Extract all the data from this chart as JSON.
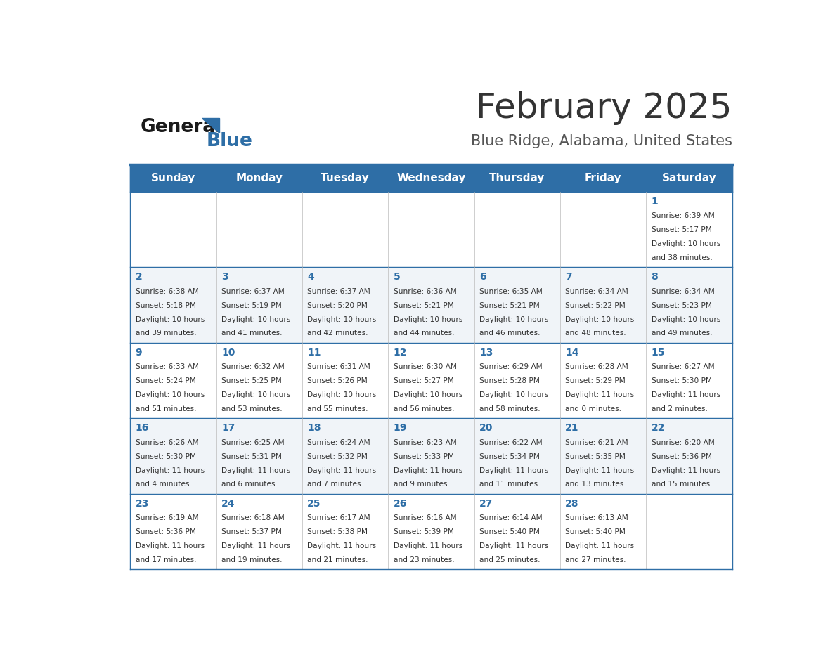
{
  "title": "February 2025",
  "subtitle": "Blue Ridge, Alabama, United States",
  "header_bg": "#2E6EA6",
  "header_text": "#FFFFFF",
  "day_names": [
    "Sunday",
    "Monday",
    "Tuesday",
    "Wednesday",
    "Thursday",
    "Friday",
    "Saturday"
  ],
  "title_color": "#333333",
  "subtitle_color": "#555555",
  "cell_bg_normal": "#FFFFFF",
  "cell_bg_alt": "#F0F4F8",
  "line_color": "#2E6EA6",
  "day_num_color": "#2E6EA6",
  "cell_text_color": "#333333",
  "logo_general_color": "#1a1a1a",
  "logo_blue_color": "#2E6EA6",
  "calendar": [
    [
      {
        "day": null
      },
      {
        "day": null
      },
      {
        "day": null
      },
      {
        "day": null
      },
      {
        "day": null
      },
      {
        "day": null
      },
      {
        "day": 1,
        "sunrise": "6:39 AM",
        "sunset": "5:17 PM",
        "daylight": "10 hours and 38 minutes."
      }
    ],
    [
      {
        "day": 2,
        "sunrise": "6:38 AM",
        "sunset": "5:18 PM",
        "daylight": "10 hours and 39 minutes."
      },
      {
        "day": 3,
        "sunrise": "6:37 AM",
        "sunset": "5:19 PM",
        "daylight": "10 hours and 41 minutes."
      },
      {
        "day": 4,
        "sunrise": "6:37 AM",
        "sunset": "5:20 PM",
        "daylight": "10 hours and 42 minutes."
      },
      {
        "day": 5,
        "sunrise": "6:36 AM",
        "sunset": "5:21 PM",
        "daylight": "10 hours and 44 minutes."
      },
      {
        "day": 6,
        "sunrise": "6:35 AM",
        "sunset": "5:21 PM",
        "daylight": "10 hours and 46 minutes."
      },
      {
        "day": 7,
        "sunrise": "6:34 AM",
        "sunset": "5:22 PM",
        "daylight": "10 hours and 48 minutes."
      },
      {
        "day": 8,
        "sunrise": "6:34 AM",
        "sunset": "5:23 PM",
        "daylight": "10 hours and 49 minutes."
      }
    ],
    [
      {
        "day": 9,
        "sunrise": "6:33 AM",
        "sunset": "5:24 PM",
        "daylight": "10 hours and 51 minutes."
      },
      {
        "day": 10,
        "sunrise": "6:32 AM",
        "sunset": "5:25 PM",
        "daylight": "10 hours and 53 minutes."
      },
      {
        "day": 11,
        "sunrise": "6:31 AM",
        "sunset": "5:26 PM",
        "daylight": "10 hours and 55 minutes."
      },
      {
        "day": 12,
        "sunrise": "6:30 AM",
        "sunset": "5:27 PM",
        "daylight": "10 hours and 56 minutes."
      },
      {
        "day": 13,
        "sunrise": "6:29 AM",
        "sunset": "5:28 PM",
        "daylight": "10 hours and 58 minutes."
      },
      {
        "day": 14,
        "sunrise": "6:28 AM",
        "sunset": "5:29 PM",
        "daylight": "11 hours and 0 minutes."
      },
      {
        "day": 15,
        "sunrise": "6:27 AM",
        "sunset": "5:30 PM",
        "daylight": "11 hours and 2 minutes."
      }
    ],
    [
      {
        "day": 16,
        "sunrise": "6:26 AM",
        "sunset": "5:30 PM",
        "daylight": "11 hours and 4 minutes."
      },
      {
        "day": 17,
        "sunrise": "6:25 AM",
        "sunset": "5:31 PM",
        "daylight": "11 hours and 6 minutes."
      },
      {
        "day": 18,
        "sunrise": "6:24 AM",
        "sunset": "5:32 PM",
        "daylight": "11 hours and 7 minutes."
      },
      {
        "day": 19,
        "sunrise": "6:23 AM",
        "sunset": "5:33 PM",
        "daylight": "11 hours and 9 minutes."
      },
      {
        "day": 20,
        "sunrise": "6:22 AM",
        "sunset": "5:34 PM",
        "daylight": "11 hours and 11 minutes."
      },
      {
        "day": 21,
        "sunrise": "6:21 AM",
        "sunset": "5:35 PM",
        "daylight": "11 hours and 13 minutes."
      },
      {
        "day": 22,
        "sunrise": "6:20 AM",
        "sunset": "5:36 PM",
        "daylight": "11 hours and 15 minutes."
      }
    ],
    [
      {
        "day": 23,
        "sunrise": "6:19 AM",
        "sunset": "5:36 PM",
        "daylight": "11 hours and 17 minutes."
      },
      {
        "day": 24,
        "sunrise": "6:18 AM",
        "sunset": "5:37 PM",
        "daylight": "11 hours and 19 minutes."
      },
      {
        "day": 25,
        "sunrise": "6:17 AM",
        "sunset": "5:38 PM",
        "daylight": "11 hours and 21 minutes."
      },
      {
        "day": 26,
        "sunrise": "6:16 AM",
        "sunset": "5:39 PM",
        "daylight": "11 hours and 23 minutes."
      },
      {
        "day": 27,
        "sunrise": "6:14 AM",
        "sunset": "5:40 PM",
        "daylight": "11 hours and 25 minutes."
      },
      {
        "day": 28,
        "sunrise": "6:13 AM",
        "sunset": "5:40 PM",
        "daylight": "11 hours and 27 minutes."
      },
      {
        "day": null
      }
    ]
  ]
}
